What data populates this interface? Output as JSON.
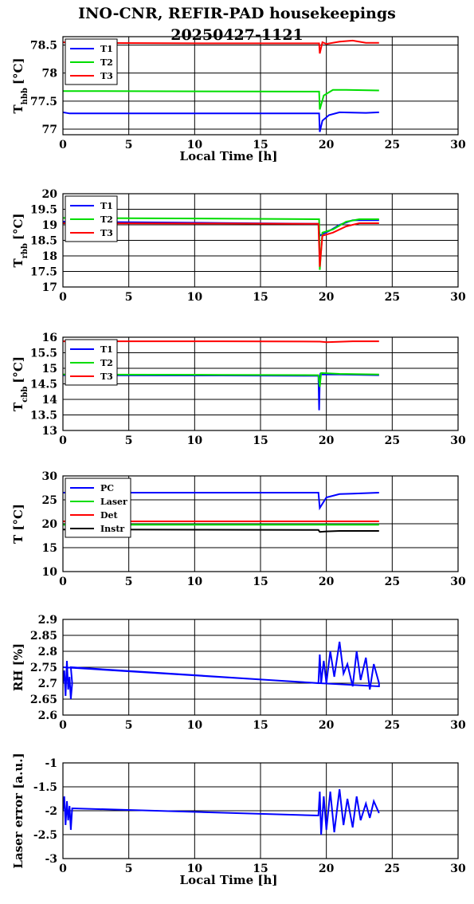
{
  "page": {
    "title_line1": "INO-CNR, REFIR-PAD housekeepings",
    "title_line2": "20250427-1121"
  },
  "colors": {
    "blue": "#0000ff",
    "green": "#00dd00",
    "red": "#ff0000",
    "black": "#000000"
  },
  "chart_data": [
    {
      "type": "line",
      "ylabel": "T",
      "ylabel_sub": "hbb",
      "ylabel_unit": "[°C]",
      "xlabel": "Local Time [h]",
      "xlim": [
        0,
        30
      ],
      "ylim": [
        76.9,
        78.65
      ],
      "xticks": [
        0,
        5,
        10,
        15,
        20,
        25,
        30
      ],
      "yticks": [
        77,
        77.5,
        78,
        78.5
      ],
      "yticklabels": [
        "77",
        "77.5",
        "78",
        "78.5"
      ],
      "grid": true,
      "legend_position": "top-left",
      "series": [
        {
          "name": "T1",
          "color": "#0000ff",
          "x": [
            0,
            0.5,
            12,
            19.45,
            19.5,
            19.7,
            20.2,
            21,
            23,
            24
          ],
          "y": [
            77.3,
            77.28,
            77.28,
            77.28,
            76.95,
            77.15,
            77.25,
            77.3,
            77.29,
            77.3
          ]
        },
        {
          "name": "T2",
          "color": "#00dd00",
          "x": [
            0,
            0.5,
            19.45,
            19.5,
            19.8,
            20.5,
            21.5,
            24
          ],
          "y": [
            77.68,
            77.68,
            77.67,
            77.35,
            77.6,
            77.7,
            77.7,
            77.69
          ]
        },
        {
          "name": "T3",
          "color": "#ff0000",
          "x": [
            0,
            0.5,
            12,
            19.45,
            19.5,
            19.7,
            20,
            21,
            22,
            23,
            24
          ],
          "y": [
            78.55,
            78.54,
            78.53,
            78.53,
            78.35,
            78.55,
            78.52,
            78.56,
            78.58,
            78.54,
            78.54
          ]
        }
      ]
    },
    {
      "type": "line",
      "ylabel": "T",
      "ylabel_sub": "rbb",
      "ylabel_unit": "[°C]",
      "xlabel": "",
      "xlim": [
        0,
        30
      ],
      "ylim": [
        17,
        20
      ],
      "xticks": [
        0,
        5,
        10,
        15,
        20,
        25,
        30
      ],
      "yticks": [
        17,
        17.5,
        18,
        18.5,
        19,
        19.5,
        20
      ],
      "yticklabels": [
        "17",
        "17.5",
        "18",
        "18.5",
        "19",
        "19.5",
        "20"
      ],
      "grid": true,
      "legend_position": "top-left",
      "series": [
        {
          "name": "T1",
          "color": "#0000ff",
          "x": [
            0,
            6,
            12,
            19.4,
            19.5,
            19.7,
            20.2,
            21,
            22,
            24
          ],
          "y": [
            19.1,
            19.08,
            19.06,
            19.03,
            18.65,
            18.7,
            18.8,
            19.0,
            19.15,
            19.15
          ]
        },
        {
          "name": "T2",
          "color": "#00dd00",
          "x": [
            0,
            12,
            19.45,
            19.5,
            19.7,
            20.5,
            21.5,
            22.5,
            24
          ],
          "y": [
            19.22,
            19.2,
            19.18,
            17.55,
            18.75,
            18.85,
            19.1,
            19.18,
            19.18
          ]
        },
        {
          "name": "T3",
          "color": "#ff0000",
          "x": [
            0,
            12,
            19.4,
            19.5,
            19.7,
            20.5,
            21.5,
            22.5,
            24
          ],
          "y": [
            19.05,
            19.04,
            19.03,
            17.65,
            18.65,
            18.75,
            18.95,
            19.05,
            19.05
          ]
        }
      ]
    },
    {
      "type": "line",
      "ylabel": "T",
      "ylabel_sub": "cbb",
      "ylabel_unit": "[°C]",
      "xlabel": "",
      "xlim": [
        0,
        30
      ],
      "ylim": [
        13,
        16
      ],
      "xticks": [
        0,
        5,
        10,
        15,
        20,
        25,
        30
      ],
      "yticks": [
        13,
        13.5,
        14,
        14.5,
        15,
        15.5,
        16
      ],
      "yticklabels": [
        "13",
        "13.5",
        "14",
        "14.5",
        "15",
        "15.5",
        "16"
      ],
      "grid": true,
      "legend_position": "top-left",
      "series": [
        {
          "name": "T1",
          "color": "#0000ff",
          "x": [
            0,
            12,
            19.4,
            19.45,
            19.5,
            19.55,
            19.7,
            21,
            24
          ],
          "y": [
            14.78,
            14.77,
            14.76,
            13.65,
            14.6,
            14.82,
            14.8,
            14.8,
            14.78
          ]
        },
        {
          "name": "T2",
          "color": "#00dd00",
          "x": [
            0,
            12,
            19.4,
            19.5,
            19.6,
            21,
            24
          ],
          "y": [
            14.8,
            14.79,
            14.78,
            14.4,
            14.85,
            14.82,
            14.8
          ]
        },
        {
          "name": "T3",
          "color": "#ff0000",
          "x": [
            0,
            12,
            19.5,
            20,
            22,
            24
          ],
          "y": [
            15.87,
            15.87,
            15.86,
            15.84,
            15.87,
            15.87
          ]
        }
      ]
    },
    {
      "type": "line",
      "ylabel": "T [°C]",
      "ylabel_sub": "",
      "ylabel_unit": "",
      "xlabel": "",
      "xlim": [
        0,
        30
      ],
      "ylim": [
        10,
        30
      ],
      "xticks": [
        0,
        5,
        10,
        15,
        20,
        25,
        30
      ],
      "yticks": [
        10,
        15,
        20,
        25,
        30
      ],
      "yticklabels": [
        "10",
        "15",
        "20",
        "25",
        "30"
      ],
      "grid": true,
      "legend_position": "top-left",
      "series": [
        {
          "name": "PC",
          "color": "#0000ff",
          "x": [
            0,
            12,
            19.4,
            19.5,
            20,
            21,
            22,
            24
          ],
          "y": [
            26.5,
            26.5,
            26.5,
            23.3,
            25.5,
            26.2,
            26.3,
            26.5
          ]
        },
        {
          "name": "Laser",
          "color": "#00dd00",
          "x": [
            0,
            24
          ],
          "y": [
            19.8,
            19.8
          ]
        },
        {
          "name": "Det",
          "color": "#ff0000",
          "x": [
            0,
            24
          ],
          "y": [
            20.5,
            20.5
          ]
        },
        {
          "name": "Instr",
          "color": "#000000",
          "x": [
            0,
            19.4,
            19.5,
            20,
            21,
            24
          ],
          "y": [
            18.8,
            18.7,
            18.3,
            18.4,
            18.5,
            18.5
          ]
        }
      ]
    },
    {
      "type": "line",
      "ylabel": "RH [%]",
      "ylabel_sub": "",
      "ylabel_unit": "",
      "xlabel": "",
      "xlim": [
        0,
        30
      ],
      "ylim": [
        2.6,
        2.9
      ],
      "xticks": [
        0,
        5,
        10,
        15,
        20,
        25,
        30
      ],
      "yticks": [
        2.6,
        2.65,
        2.7,
        2.75,
        2.8,
        2.85,
        2.9
      ],
      "yticklabels": [
        "2.6",
        "2.65",
        "2.7",
        "2.75",
        "2.8",
        "2.85",
        "2.9"
      ],
      "grid": true,
      "legend_position": "none",
      "series": [
        {
          "name": "",
          "color": "#0000ff",
          "x": [
            0,
            0.1,
            0.2,
            0.3,
            0.4,
            0.5,
            0.6,
            0.7,
            0.6,
            19.4,
            19.5,
            19.6,
            19.8,
            20,
            20.3,
            20.6,
            21,
            21.3,
            21.6,
            22,
            22.3,
            22.6,
            23,
            23.3,
            23.6,
            24,
            24,
            19.5,
            0
          ],
          "y": [
            2.7,
            2.74,
            2.66,
            2.77,
            2.68,
            2.72,
            2.65,
            2.7,
            2.75,
            2.7,
            2.79,
            2.7,
            2.77,
            2.7,
            2.8,
            2.72,
            2.83,
            2.73,
            2.76,
            2.69,
            2.8,
            2.71,
            2.78,
            2.68,
            2.76,
            2.7,
            2.69,
            2.7,
            2.75
          ]
        }
      ]
    },
    {
      "type": "line",
      "ylabel": "Laser error [a.u.]",
      "ylabel_sub": "",
      "ylabel_unit": "",
      "xlabel": "Local Time [h]",
      "xlim": [
        0,
        30
      ],
      "ylim": [
        -3,
        -1
      ],
      "xticks": [
        0,
        5,
        10,
        15,
        20,
        25,
        30
      ],
      "yticks": [
        -3,
        -2.5,
        -2,
        -1.5,
        -1
      ],
      "yticklabels": [
        "-3",
        "-2.5",
        "-2",
        "-1.5",
        "-1"
      ],
      "grid": true,
      "legend_position": "none",
      "series": [
        {
          "name": "",
          "color": "#0000ff",
          "x": [
            0,
            0.1,
            0.2,
            0.3,
            0.4,
            0.5,
            0.6,
            0.7,
            19.4,
            19.5,
            19.6,
            19.8,
            20,
            20.3,
            20.6,
            21,
            21.3,
            21.6,
            22,
            22.3,
            22.6,
            23,
            23.3,
            23.6,
            24
          ],
          "y": [
            -2,
            -1.7,
            -2.3,
            -1.8,
            -2.2,
            -1.9,
            -2.4,
            -1.95,
            -2.1,
            -1.6,
            -2.5,
            -1.7,
            -2.4,
            -1.6,
            -2.45,
            -1.55,
            -2.3,
            -1.75,
            -2.35,
            -1.7,
            -2.2,
            -1.85,
            -2.15,
            -1.8,
            -2.05
          ]
        }
      ]
    }
  ]
}
